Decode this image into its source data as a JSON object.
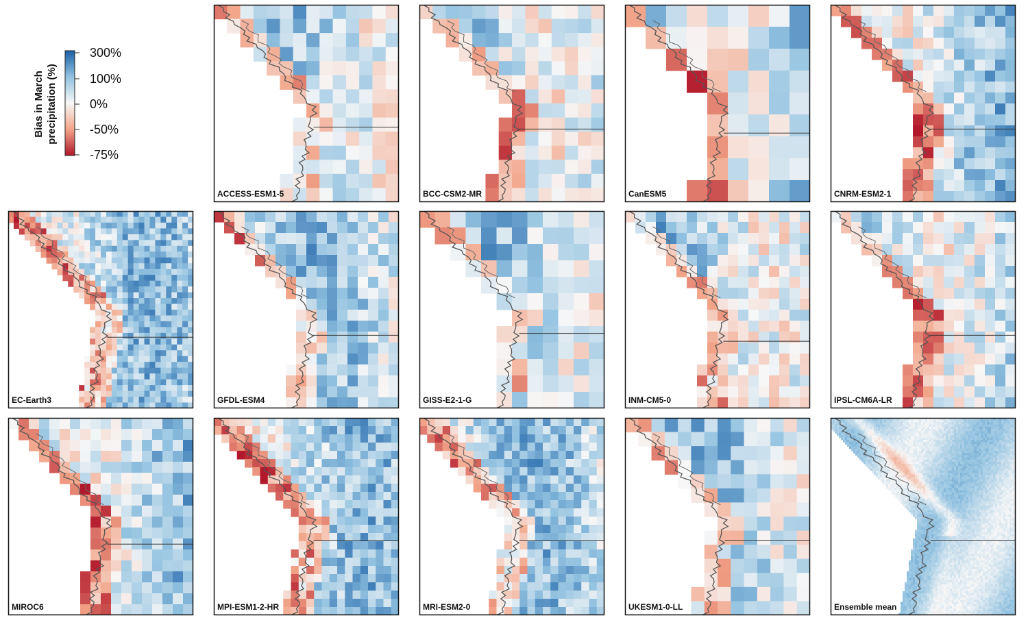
{
  "chart_data": {
    "type": "heatmap",
    "legend": {
      "title_line1": "Bias in March",
      "title_line2": "precipitation (%)",
      "ticks": [
        "300%",
        "100%",
        "0%",
        "-50%",
        "-75%"
      ],
      "colors": [
        "#1a5fa6",
        "#92c2e0",
        "#f7f7f7",
        "#f2a488",
        "#b2182b"
      ]
    },
    "panels": [
      {
        "model": "ACCESS-ESM1-5"
      },
      {
        "model": "BCC-CSM2-MR"
      },
      {
        "model": "CanESM5"
      },
      {
        "model": "CNRM-ESM2-1"
      },
      {
        "model": "EC-Earth3"
      },
      {
        "model": "GFDL-ESM4"
      },
      {
        "model": "GISS-E2-1-G"
      },
      {
        "model": "INM-CM5-0"
      },
      {
        "model": "IPSL-CM6A-LR"
      },
      {
        "model": "MIROC6"
      },
      {
        "model": "MPI-ESM1-2-HR"
      },
      {
        "model": "MRI-ESM2-0"
      },
      {
        "model": "UKESM1-0-LL"
      },
      {
        "model": "Ensemble mean"
      }
    ]
  }
}
